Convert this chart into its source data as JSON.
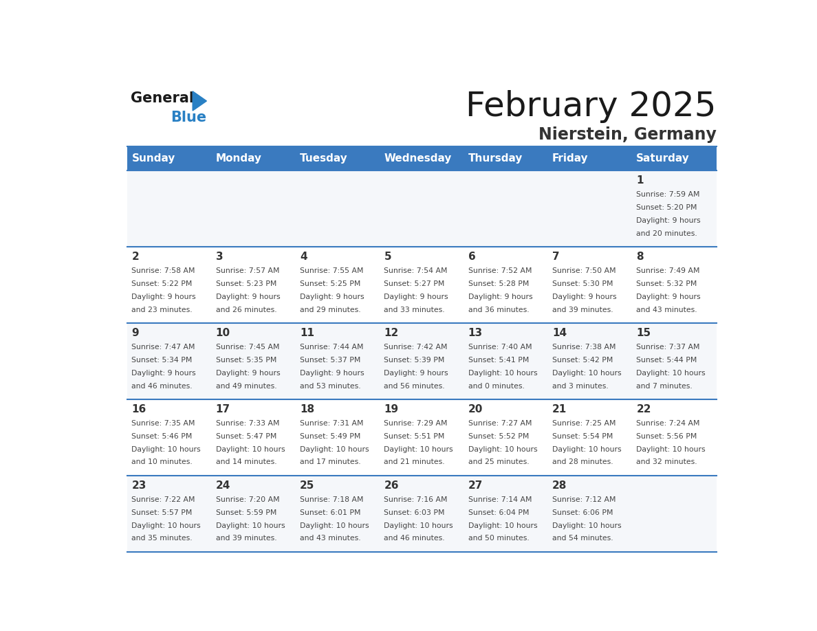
{
  "title": "February 2025",
  "subtitle": "Nierstein, Germany",
  "header_bg": "#3a7abf",
  "header_text": "#ffffff",
  "row_line_color": "#3a7abf",
  "text_color": "#333333",
  "days_of_week": [
    "Sunday",
    "Monday",
    "Tuesday",
    "Wednesday",
    "Thursday",
    "Friday",
    "Saturday"
  ],
  "weeks": [
    [
      null,
      null,
      null,
      null,
      null,
      null,
      1
    ],
    [
      2,
      3,
      4,
      5,
      6,
      7,
      8
    ],
    [
      9,
      10,
      11,
      12,
      13,
      14,
      15
    ],
    [
      16,
      17,
      18,
      19,
      20,
      21,
      22
    ],
    [
      23,
      24,
      25,
      26,
      27,
      28,
      null
    ]
  ],
  "cell_data": {
    "1": {
      "sunrise": "7:59 AM",
      "sunset": "5:20 PM",
      "daylight": "9 hours and 20 minutes"
    },
    "2": {
      "sunrise": "7:58 AM",
      "sunset": "5:22 PM",
      "daylight": "9 hours and 23 minutes"
    },
    "3": {
      "sunrise": "7:57 AM",
      "sunset": "5:23 PM",
      "daylight": "9 hours and 26 minutes"
    },
    "4": {
      "sunrise": "7:55 AM",
      "sunset": "5:25 PM",
      "daylight": "9 hours and 29 minutes"
    },
    "5": {
      "sunrise": "7:54 AM",
      "sunset": "5:27 PM",
      "daylight": "9 hours and 33 minutes"
    },
    "6": {
      "sunrise": "7:52 AM",
      "sunset": "5:28 PM",
      "daylight": "9 hours and 36 minutes"
    },
    "7": {
      "sunrise": "7:50 AM",
      "sunset": "5:30 PM",
      "daylight": "9 hours and 39 minutes"
    },
    "8": {
      "sunrise": "7:49 AM",
      "sunset": "5:32 PM",
      "daylight": "9 hours and 43 minutes"
    },
    "9": {
      "sunrise": "7:47 AM",
      "sunset": "5:34 PM",
      "daylight": "9 hours and 46 minutes"
    },
    "10": {
      "sunrise": "7:45 AM",
      "sunset": "5:35 PM",
      "daylight": "9 hours and 49 minutes"
    },
    "11": {
      "sunrise": "7:44 AM",
      "sunset": "5:37 PM",
      "daylight": "9 hours and 53 minutes"
    },
    "12": {
      "sunrise": "7:42 AM",
      "sunset": "5:39 PM",
      "daylight": "9 hours and 56 minutes"
    },
    "13": {
      "sunrise": "7:40 AM",
      "sunset": "5:41 PM",
      "daylight": "10 hours and 0 minutes"
    },
    "14": {
      "sunrise": "7:38 AM",
      "sunset": "5:42 PM",
      "daylight": "10 hours and 3 minutes"
    },
    "15": {
      "sunrise": "7:37 AM",
      "sunset": "5:44 PM",
      "daylight": "10 hours and 7 minutes"
    },
    "16": {
      "sunrise": "7:35 AM",
      "sunset": "5:46 PM",
      "daylight": "10 hours and 10 minutes"
    },
    "17": {
      "sunrise": "7:33 AM",
      "sunset": "5:47 PM",
      "daylight": "10 hours and 14 minutes"
    },
    "18": {
      "sunrise": "7:31 AM",
      "sunset": "5:49 PM",
      "daylight": "10 hours and 17 minutes"
    },
    "19": {
      "sunrise": "7:29 AM",
      "sunset": "5:51 PM",
      "daylight": "10 hours and 21 minutes"
    },
    "20": {
      "sunrise": "7:27 AM",
      "sunset": "5:52 PM",
      "daylight": "10 hours and 25 minutes"
    },
    "21": {
      "sunrise": "7:25 AM",
      "sunset": "5:54 PM",
      "daylight": "10 hours and 28 minutes"
    },
    "22": {
      "sunrise": "7:24 AM",
      "sunset": "5:56 PM",
      "daylight": "10 hours and 32 minutes"
    },
    "23": {
      "sunrise": "7:22 AM",
      "sunset": "5:57 PM",
      "daylight": "10 hours and 35 minutes"
    },
    "24": {
      "sunrise": "7:20 AM",
      "sunset": "5:59 PM",
      "daylight": "10 hours and 39 minutes"
    },
    "25": {
      "sunrise": "7:18 AM",
      "sunset": "6:01 PM",
      "daylight": "10 hours and 43 minutes"
    },
    "26": {
      "sunrise": "7:16 AM",
      "sunset": "6:03 PM",
      "daylight": "10 hours and 46 minutes"
    },
    "27": {
      "sunrise": "7:14 AM",
      "sunset": "6:04 PM",
      "daylight": "10 hours and 50 minutes"
    },
    "28": {
      "sunrise": "7:12 AM",
      "sunset": "6:06 PM",
      "daylight": "10 hours and 54 minutes"
    }
  },
  "logo_general_color": "#1a1a1a",
  "logo_blue_color": "#2980c4"
}
